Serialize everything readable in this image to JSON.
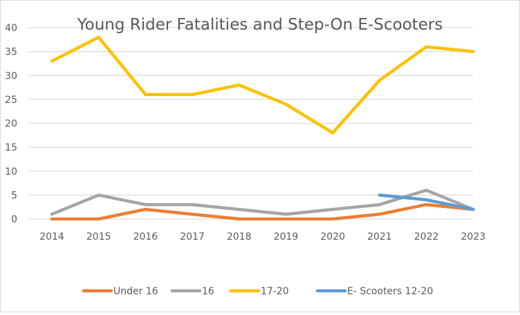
{
  "chart_data": {
    "type": "line",
    "title": "Young Rider Fatalities and Step-On E-Scooters",
    "xlabel": "",
    "ylabel": "",
    "categories": [
      "2014",
      "2015",
      "2016",
      "2017",
      "2018",
      "2019",
      "2020",
      "2021",
      "2022",
      "2023"
    ],
    "ylim": [
      0,
      40
    ],
    "yticks": [
      "0",
      "5",
      "10",
      "15",
      "20",
      "25",
      "30",
      "35",
      "40"
    ],
    "grid": true,
    "legend_position": "bottom",
    "series": [
      {
        "name": "Under 16",
        "color": "#ED7D31",
        "values": [
          0,
          0,
          2,
          1,
          0,
          0,
          0,
          1,
          3,
          2
        ]
      },
      {
        "name": "16",
        "color": "#A5A5A5",
        "values": [
          1,
          5,
          3,
          3,
          2,
          1,
          2,
          3,
          6,
          2
        ]
      },
      {
        "name": "17-20",
        "color": "#FFC000",
        "values": [
          33,
          38,
          26,
          26,
          28,
          24,
          18,
          29,
          36,
          35
        ]
      },
      {
        "name": "E- Scooters 12-20",
        "color": "#5B9BD5",
        "values": [
          null,
          null,
          null,
          null,
          null,
          null,
          null,
          5,
          4,
          2
        ]
      }
    ]
  }
}
